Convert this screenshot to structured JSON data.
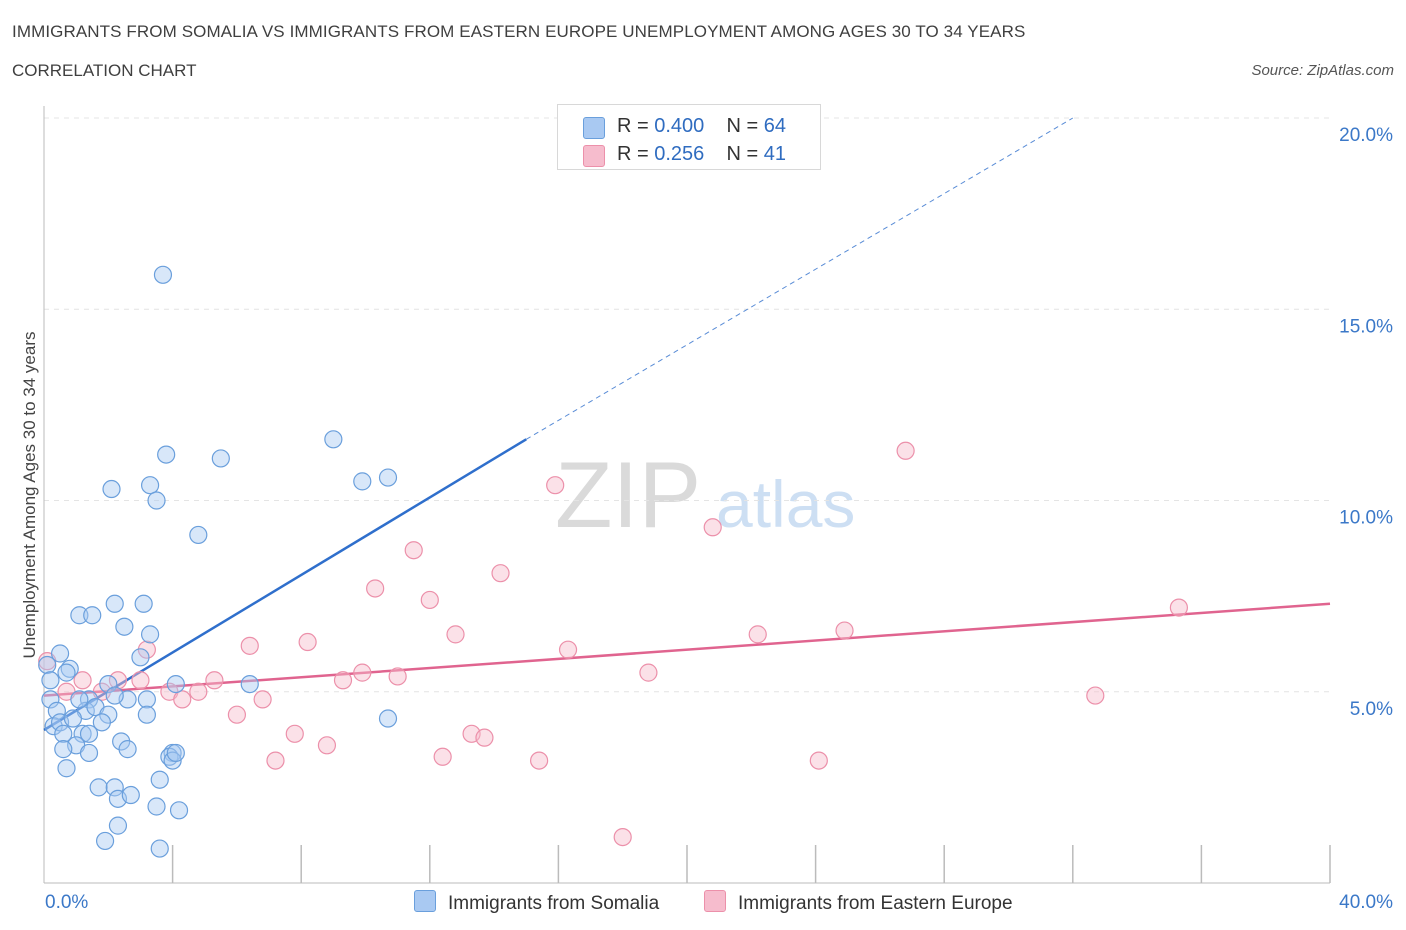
{
  "header": {
    "title": "IMMIGRANTS FROM SOMALIA VS IMMIGRANTS FROM EASTERN EUROPE UNEMPLOYMENT AMONG AGES 30 TO 34 YEARS",
    "subtitle": "CORRELATION CHART",
    "source": "Source: ZipAtlas.com"
  },
  "watermark": {
    "zip": "ZIP",
    "atlas": "atlas"
  },
  "legend": {
    "rows": [
      {
        "r_label": "R = ",
        "r_value": "0.400",
        "n_label": "N = ",
        "n_value": "64",
        "color": "#a9c9f2"
      },
      {
        "r_label": "R = ",
        "r_value": " 0.256",
        "n_label": "N = ",
        "n_value": " 41",
        "color": "#f6bccd"
      }
    ]
  },
  "chart_data": {
    "type": "scatter",
    "title": "IMMIGRANTS FROM SOMALIA VS IMMIGRANTS FROM EASTERN EUROPE UNEMPLOYMENT AMONG AGES 30 TO 34 YEARS",
    "subtitle": "CORRELATION CHART",
    "xlabel": "",
    "ylabel": "Unemployment Among Ages 30 to 34 years",
    "xlim": [
      0,
      40
    ],
    "ylim": [
      0,
      20
    ],
    "x_tick_labels": [
      "0.0%",
      "40.0%"
    ],
    "y_ticks": [
      5,
      10,
      15,
      20
    ],
    "y_tick_labels": [
      "5.0%",
      "10.0%",
      "15.0%",
      "20.0%"
    ],
    "grid": true,
    "legend_position": "bottom-center",
    "series": [
      {
        "name": "Immigrants from Somalia",
        "color": "#a9c9f2",
        "stroke": "#6a9fdc",
        "R": 0.4,
        "N": 64,
        "trend": {
          "x0": 0.0,
          "y0": 4.0,
          "x1": 15.0,
          "y1": 11.6,
          "dashed_to_x": 32.0,
          "dashed_to_y": 20.0,
          "color": "#2f6fcc"
        },
        "points": [
          [
            3.7,
            15.9
          ],
          [
            2.1,
            10.3
          ],
          [
            3.3,
            10.4
          ],
          [
            3.8,
            11.2
          ],
          [
            5.5,
            11.1
          ],
          [
            3.5,
            10.0
          ],
          [
            4.8,
            9.1
          ],
          [
            9.0,
            11.6
          ],
          [
            9.9,
            10.5
          ],
          [
            10.7,
            10.6
          ],
          [
            1.1,
            7.0
          ],
          [
            1.5,
            7.0
          ],
          [
            2.2,
            7.3
          ],
          [
            3.1,
            7.3
          ],
          [
            2.5,
            6.7
          ],
          [
            3.3,
            6.5
          ],
          [
            0.5,
            6.0
          ],
          [
            0.1,
            5.7
          ],
          [
            0.8,
            5.6
          ],
          [
            0.7,
            5.5
          ],
          [
            3.0,
            5.9
          ],
          [
            4.1,
            5.2
          ],
          [
            6.4,
            5.2
          ],
          [
            2.0,
            5.2
          ],
          [
            0.2,
            4.8
          ],
          [
            1.4,
            4.8
          ],
          [
            2.6,
            4.8
          ],
          [
            3.2,
            4.8
          ],
          [
            0.4,
            4.5
          ],
          [
            1.3,
            4.5
          ],
          [
            1.6,
            4.6
          ],
          [
            2.0,
            4.4
          ],
          [
            3.2,
            4.4
          ],
          [
            0.3,
            4.1
          ],
          [
            0.5,
            4.2
          ],
          [
            0.9,
            4.3
          ],
          [
            1.8,
            4.2
          ],
          [
            0.6,
            3.9
          ],
          [
            1.2,
            3.9
          ],
          [
            1.4,
            3.9
          ],
          [
            2.4,
            3.7
          ],
          [
            1.0,
            3.6
          ],
          [
            0.6,
            3.5
          ],
          [
            1.4,
            3.4
          ],
          [
            2.6,
            3.5
          ],
          [
            4.0,
            3.4
          ],
          [
            3.9,
            3.3
          ],
          [
            4.0,
            3.2
          ],
          [
            0.7,
            3.0
          ],
          [
            3.6,
            2.7
          ],
          [
            1.7,
            2.5
          ],
          [
            2.2,
            2.5
          ],
          [
            2.3,
            2.2
          ],
          [
            2.7,
            2.3
          ],
          [
            3.5,
            2.0
          ],
          [
            4.2,
            1.9
          ],
          [
            2.3,
            1.5
          ],
          [
            1.9,
            1.1
          ],
          [
            3.6,
            0.9
          ],
          [
            10.7,
            4.3
          ],
          [
            0.2,
            5.3
          ],
          [
            1.1,
            4.8
          ],
          [
            2.2,
            4.9
          ],
          [
            4.1,
            3.4
          ]
        ]
      },
      {
        "name": "Immigrants from Eastern Europe",
        "color": "#f6bccd",
        "stroke": "#ec90aa",
        "R": 0.256,
        "N": 41,
        "trend": {
          "x0": 0.0,
          "y0": 4.9,
          "x1": 40.0,
          "y1": 7.3,
          "color": "#e0648f"
        },
        "points": [
          [
            0.1,
            5.8
          ],
          [
            0.7,
            5.0
          ],
          [
            1.2,
            5.3
          ],
          [
            1.8,
            5.0
          ],
          [
            2.3,
            5.3
          ],
          [
            3.2,
            6.1
          ],
          [
            3.9,
            5.0
          ],
          [
            4.3,
            4.8
          ],
          [
            4.8,
            5.0
          ],
          [
            5.3,
            5.3
          ],
          [
            6.0,
            4.4
          ],
          [
            6.4,
            6.2
          ],
          [
            6.8,
            4.8
          ],
          [
            7.2,
            3.2
          ],
          [
            7.8,
            3.9
          ],
          [
            8.2,
            6.3
          ],
          [
            8.8,
            3.6
          ],
          [
            9.3,
            5.3
          ],
          [
            9.9,
            5.5
          ],
          [
            10.3,
            7.7
          ],
          [
            11.0,
            5.4
          ],
          [
            11.5,
            8.7
          ],
          [
            12.0,
            7.4
          ],
          [
            12.4,
            3.3
          ],
          [
            12.8,
            6.5
          ],
          [
            13.3,
            3.9
          ],
          [
            13.7,
            3.8
          ],
          [
            14.2,
            8.1
          ],
          [
            15.4,
            3.2
          ],
          [
            15.9,
            10.4
          ],
          [
            16.3,
            6.1
          ],
          [
            18.0,
            1.2
          ],
          [
            18.8,
            5.5
          ],
          [
            20.8,
            9.3
          ],
          [
            22.2,
            6.5
          ],
          [
            24.1,
            3.2
          ],
          [
            24.9,
            6.6
          ],
          [
            26.8,
            11.3
          ],
          [
            32.7,
            4.9
          ],
          [
            35.3,
            7.2
          ],
          [
            3.0,
            5.3
          ]
        ]
      }
    ]
  },
  "bottom_legend": {
    "items": [
      {
        "label": "Immigrants from Somalia",
        "color": "#a9c9f2"
      },
      {
        "label": "Immigrants from Eastern Europe",
        "color": "#f6bccd"
      }
    ]
  }
}
